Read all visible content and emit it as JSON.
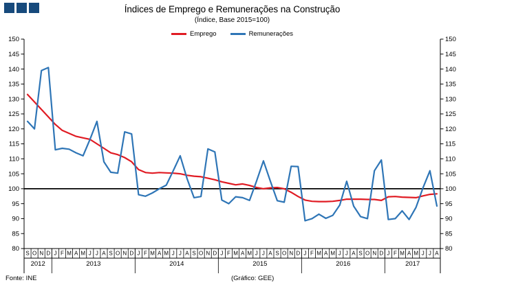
{
  "header": {
    "title": "Índices de Emprego e Remunerações na Construção",
    "subtitle": "(Índice, Base 2015=100)",
    "logo_color": "#174a7c"
  },
  "legend": [
    {
      "label": "Emprego",
      "color": "#e01b23"
    },
    {
      "label": "Remunerações",
      "color": "#2e75b6"
    }
  ],
  "footer": {
    "source": "Fonte: INE",
    "credit": "(Gráfico: GEE)"
  },
  "chart_data": {
    "type": "line",
    "title": "Índices de Emprego e Remunerações na Construção",
    "subtitle": "(Índice, Base 2015=100)",
    "ylim": [
      80,
      150
    ],
    "ytick_step": 5,
    "y_ticks": [
      150,
      145,
      140,
      135,
      130,
      125,
      120,
      115,
      110,
      105,
      100,
      95,
      90,
      85,
      80
    ],
    "baseline": 100,
    "grid": false,
    "legend_position": "top",
    "x_months": [
      "S",
      "O",
      "N",
      "D",
      "J",
      "F",
      "M",
      "A",
      "M",
      "J",
      "J",
      "A",
      "S",
      "O",
      "N",
      "D",
      "J",
      "F",
      "M",
      "A",
      "M",
      "J",
      "J",
      "A",
      "S",
      "O",
      "N",
      "D",
      "J",
      "F",
      "M",
      "A",
      "M",
      "J",
      "J",
      "A",
      "S",
      "O",
      "N",
      "D",
      "J",
      "F",
      "M",
      "A",
      "M",
      "J",
      "J",
      "A",
      "S",
      "O",
      "N",
      "D",
      "J",
      "F",
      "M",
      "A",
      "M",
      "J",
      "J",
      "A"
    ],
    "x_years": [
      {
        "label": "2012",
        "span": 4
      },
      {
        "label": "2013",
        "span": 12
      },
      {
        "label": "2014",
        "span": 12
      },
      {
        "label": "2015",
        "span": 12
      },
      {
        "label": "2016",
        "span": 12
      },
      {
        "label": "2017",
        "span": 8
      }
    ],
    "series": [
      {
        "name": "Emprego",
        "color": "#e01b23",
        "values": [
          131.5,
          129,
          126.5,
          124,
          121.5,
          119.5,
          118.5,
          117.5,
          117,
          116.5,
          115,
          113.5,
          112,
          111.4,
          110.4,
          109,
          106.4,
          105.4,
          105.2,
          105.4,
          105.3,
          105.2,
          105,
          104.5,
          104.2,
          104,
          103.5,
          103,
          102.3,
          101.8,
          101.3,
          101.6,
          101.1,
          100.4,
          100,
          100.3,
          100.4,
          100,
          98.8,
          97.4,
          96.2,
          95.8,
          95.7,
          95.7,
          95.8,
          96.1,
          96.5,
          96.5,
          96.5,
          96.4,
          96.4,
          96.1,
          97.3,
          97.4,
          97.2,
          97.1,
          97,
          97.6,
          98.1,
          98.3
        ]
      },
      {
        "name": "Remunerações",
        "color": "#2e75b6",
        "values": [
          122.5,
          120,
          139.5,
          140.5,
          113,
          113.5,
          113.2,
          112,
          111,
          116.5,
          122.5,
          109,
          105.5,
          105.2,
          119,
          118.3,
          98,
          97.5,
          98.6,
          100,
          101.2,
          106,
          111,
          103.3,
          97,
          97.4,
          113.3,
          112.3,
          96.2,
          95,
          97.3,
          97,
          96.1,
          102.5,
          109.3,
          102.5,
          96,
          95.5,
          107.5,
          107.4,
          89.3,
          90,
          91.5,
          90.1,
          91.1,
          94.5,
          102.5,
          94.2,
          90.7,
          90,
          106,
          109.6,
          89.7,
          90,
          92.6,
          89.7,
          93.8,
          100.3,
          106,
          94.2
        ]
      }
    ]
  }
}
